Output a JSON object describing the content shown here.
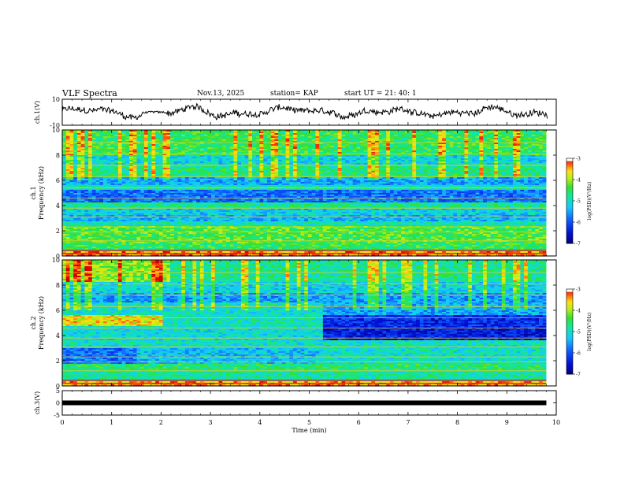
{
  "header": {
    "title": "VLF Spectra",
    "date": "Nov.13, 2025",
    "station": "station= KAP",
    "start": "start  UT =  21: 40: 1"
  },
  "chart_data": [
    {
      "type": "line",
      "id": "ch1-waveform",
      "ylabel": "ch.1(V)",
      "ylim": [
        -10,
        10
      ],
      "yticks": [
        "10",
        "-10"
      ],
      "xlim": [
        0,
        10
      ]
    },
    {
      "type": "heatmap",
      "id": "ch1-spectrogram",
      "ylabel_line1": "ch.1",
      "ylabel_line2": "Frequency (kHz)",
      "ylim": [
        0,
        10
      ],
      "yticks": [
        "0",
        "2",
        "4",
        "6",
        "8",
        "10"
      ],
      "xlim": [
        0,
        9.8
      ],
      "colorbar": {
        "label": "log(PSD)(V²/Hz)",
        "range": [
          -7,
          -3
        ],
        "ticks": [
          "-3",
          "-4",
          "-5",
          "-6",
          "-7"
        ]
      }
    },
    {
      "type": "heatmap",
      "id": "ch2-spectrogram",
      "ylabel_line1": "ch.2",
      "ylabel_line2": "Frequency (kHz)",
      "ylim": [
        0,
        10
      ],
      "yticks": [
        "0",
        "2",
        "4",
        "6",
        "8",
        "10"
      ],
      "xlim": [
        0,
        9.8
      ],
      "colorbar": {
        "label": "log(PSD)(V²/Hz)",
        "range": [
          -7,
          -3
        ],
        "ticks": [
          "-3",
          "-4",
          "-5",
          "-6",
          "-7"
        ]
      }
    },
    {
      "type": "line",
      "id": "ch3-signal",
      "ylabel": "ch.3(V)",
      "ylim": [
        -5,
        5
      ],
      "yticks": [
        "5",
        "0",
        "-5"
      ],
      "xlim": [
        0,
        10
      ],
      "xlabel": "Time  (min)",
      "xticks": [
        "0",
        "1",
        "2",
        "3",
        "4",
        "5",
        "6",
        "7",
        "8",
        "9",
        "10"
      ]
    }
  ]
}
